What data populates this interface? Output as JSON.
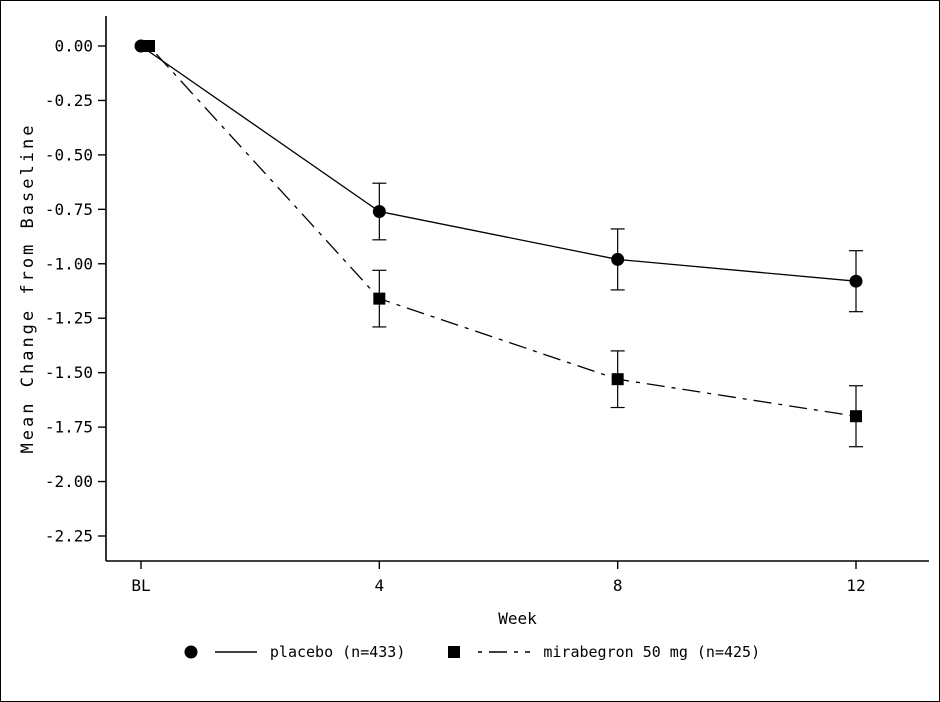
{
  "chart_data": {
    "type": "line",
    "title": "",
    "xlabel": "Week",
    "ylabel": "Mean Change from Baseline",
    "x_tick_labels": [
      "BL",
      "4",
      "8",
      "12"
    ],
    "x_values": [
      0,
      4,
      8,
      12
    ],
    "y_tick_labels": [
      "0.00",
      "-0.25",
      "-0.50",
      "-0.75",
      "-1.00",
      "-1.25",
      "-1.50",
      "-1.75",
      "-2.00",
      "-2.25"
    ],
    "y_tick_values": [
      0,
      -0.25,
      -0.5,
      -0.75,
      -1.0,
      -1.25,
      -1.5,
      -1.75,
      -2.0,
      -2.25
    ],
    "ylim": [
      -2.35,
      0.15
    ],
    "grid": false,
    "legend_position": "bottom",
    "colors": {
      "foreground": "#000000",
      "background": "#ffffff"
    },
    "series": [
      {
        "name": "placebo (n=433)",
        "marker": "circle",
        "line_style": "solid",
        "color": "#000000",
        "values": [
          0.0,
          -0.76,
          -0.98,
          -1.08
        ],
        "error": [
          0.0,
          0.13,
          0.14,
          0.14
        ]
      },
      {
        "name": "mirabegron 50 mg (n=425)",
        "marker": "square",
        "line_style": "dash-dot",
        "color": "#000000",
        "values": [
          0.0,
          -1.16,
          -1.53,
          -1.7
        ],
        "error": [
          0.0,
          0.13,
          0.13,
          0.14
        ]
      }
    ]
  }
}
